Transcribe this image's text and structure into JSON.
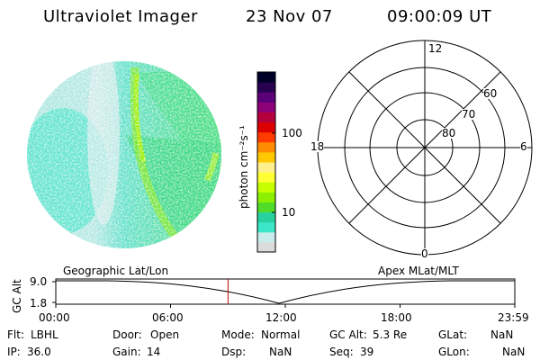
{
  "header": {
    "instrument": "Ultraviolet Imager",
    "date": "23 Nov 07",
    "time": "09:00:09 UT"
  },
  "colorbar": {
    "label": "photon cm⁻²s⁻¹",
    "ticks": [
      "100",
      "10"
    ],
    "colors": [
      "#dcdcdc",
      "#c8ecec",
      "#3ce6c8",
      "#28d2a0",
      "#50dc28",
      "#8cf000",
      "#c8ff00",
      "#ffff32",
      "#fff08c",
      "#ffc800",
      "#ff8c00",
      "#ff3c00",
      "#dc0000",
      "#b4003c",
      "#8c0078",
      "#5a0078",
      "#280050",
      "#000028"
    ]
  },
  "polar_plot": {
    "mlt_labels": [
      "12",
      "18",
      "6",
      "0"
    ],
    "lat_labels": [
      "60",
      "70",
      "80"
    ]
  },
  "timeline": {
    "left_title": "Geographic Lat/Lon",
    "right_title": "Apex MLat/MLT",
    "ylabel": "GC Alt",
    "y_ticks": [
      "9.0",
      "1.8"
    ],
    "x_ticks": [
      "00:00",
      "06:00",
      "12:00",
      "18:00",
      "23:59"
    ],
    "marker_time": "09:00"
  },
  "footer": {
    "row1": [
      {
        "label": "Flt:",
        "value": "LBHL"
      },
      {
        "label": "Door:",
        "value": "Open"
      },
      {
        "label": "Mode:",
        "value": "Normal"
      },
      {
        "label": "GC Alt:",
        "value": "5.3 Re"
      },
      {
        "label": "GLat:",
        "value": "NaN"
      }
    ],
    "row2": [
      {
        "label": "IP:",
        "value": "36.0"
      },
      {
        "label": "Gain:",
        "value": "14"
      },
      {
        "label": "Dsp:",
        "value": "NaN"
      },
      {
        "label": "Seq:",
        "value": "39"
      },
      {
        "label": "GLon:",
        "value": "NaN"
      }
    ]
  }
}
